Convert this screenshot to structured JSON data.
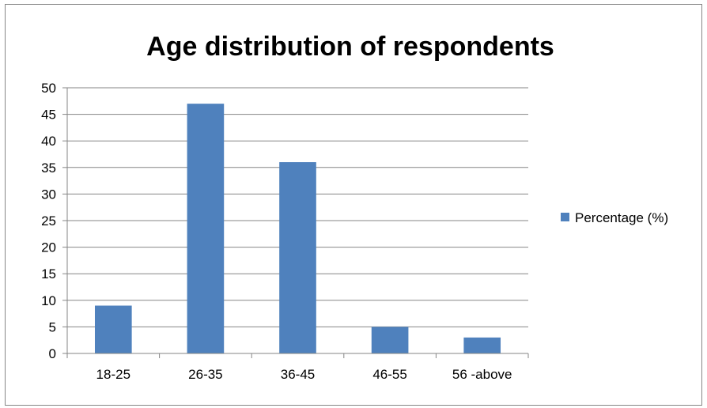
{
  "chart_data": {
    "type": "bar",
    "title": "Age distribution of respondents",
    "categories": [
      "18-25",
      "26-35",
      "36-45",
      "46-55",
      "56 -above"
    ],
    "series": [
      {
        "name": "Percentage (%)",
        "values": [
          9,
          47,
          36,
          5,
          3
        ],
        "color": "#4F81BD"
      }
    ],
    "xlabel": "",
    "ylabel": "",
    "ylim": [
      0,
      50
    ],
    "yticks": [
      0,
      5,
      10,
      15,
      20,
      25,
      30,
      35,
      40,
      45,
      50
    ],
    "grid": true,
    "legend": "right"
  }
}
